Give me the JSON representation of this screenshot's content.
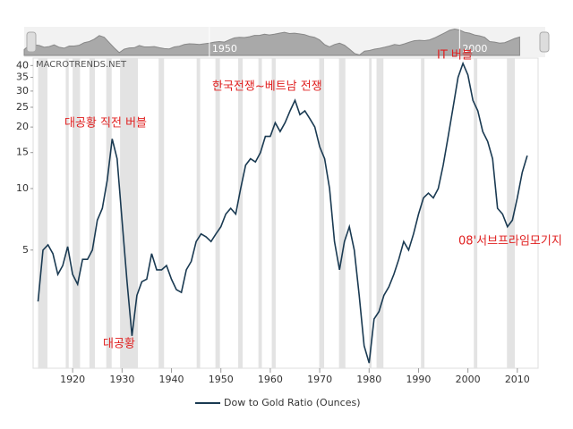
{
  "chart_data": {
    "type": "line",
    "watermark": "MACROTRENDS.NET",
    "x": [
      1913,
      1914,
      1915,
      1916,
      1917,
      1918,
      1919,
      1920,
      1921,
      1922,
      1923,
      1924,
      1925,
      1926,
      1927,
      1928,
      1929,
      1930,
      1931,
      1932,
      1933,
      1934,
      1935,
      1936,
      1937,
      1938,
      1939,
      1940,
      1941,
      1942,
      1943,
      1944,
      1945,
      1946,
      1947,
      1948,
      1949,
      1950,
      1951,
      1952,
      1953,
      1954,
      1955,
      1956,
      1957,
      1958,
      1959,
      1960,
      1961,
      1962,
      1963,
      1964,
      1965,
      1966,
      1967,
      1968,
      1969,
      1970,
      1971,
      1972,
      1973,
      1974,
      1975,
      1976,
      1977,
      1978,
      1979,
      1980,
      1981,
      1982,
      1983,
      1984,
      1985,
      1986,
      1987,
      1988,
      1989,
      1990,
      1991,
      1992,
      1993,
      1994,
      1995,
      1996,
      1997,
      1998,
      1999,
      2000,
      2001,
      2002,
      2003,
      2004,
      2005,
      2006,
      2007,
      2008,
      2009,
      2010,
      2011,
      2012
    ],
    "series": [
      {
        "name": "Dow to Gold Ratio (Ounces)",
        "color": "#1a3a52",
        "values": [
          2.8,
          5.0,
          5.3,
          4.8,
          3.8,
          4.2,
          5.2,
          3.8,
          3.4,
          4.5,
          4.5,
          5.0,
          7.0,
          8.0,
          11,
          17.5,
          14,
          7,
          3.5,
          1.9,
          3.0,
          3.5,
          3.6,
          4.8,
          4.0,
          4.0,
          4.2,
          3.6,
          3.2,
          3.1,
          4.0,
          4.4,
          5.5,
          6.0,
          5.8,
          5.5,
          6.0,
          6.5,
          7.5,
          8.0,
          7.5,
          10,
          13,
          14,
          13.5,
          15,
          18,
          18,
          21,
          19,
          21,
          24,
          27,
          23,
          24,
          22,
          20,
          16,
          14,
          10,
          5.5,
          4,
          5.5,
          6.5,
          5,
          3,
          1.7,
          1.4,
          2.3,
          2.5,
          3.0,
          3.3,
          3.8,
          4.5,
          5.5,
          5,
          6,
          7.5,
          9,
          9.5,
          9,
          10,
          13,
          18,
          25,
          35,
          41,
          36,
          27,
          24,
          19,
          17,
          14,
          8,
          7.5,
          6.5,
          7.0,
          9,
          12,
          14.5
        ]
      }
    ],
    "recessions": [
      [
        1913.0,
        1914.9
      ],
      [
        1918.6,
        1919.2
      ],
      [
        1920.0,
        1921.5
      ],
      [
        1923.4,
        1924.5
      ],
      [
        1926.8,
        1927.9
      ],
      [
        1929.6,
        1933.2
      ],
      [
        1937.4,
        1938.5
      ],
      [
        1945.1,
        1945.8
      ],
      [
        1948.9,
        1949.8
      ],
      [
        1953.5,
        1954.4
      ],
      [
        1957.6,
        1958.3
      ],
      [
        1960.3,
        1961.1
      ],
      [
        1969.9,
        1970.9
      ],
      [
        1973.9,
        1975.2
      ],
      [
        1980.0,
        1980.5
      ],
      [
        1981.5,
        1982.9
      ],
      [
        1990.5,
        1991.2
      ],
      [
        2001.2,
        2001.9
      ],
      [
        2007.9,
        2009.5
      ]
    ],
    "xlim": [
      1912,
      2014.2
    ],
    "xticks": [
      1920,
      1930,
      1940,
      1950,
      1960,
      1970,
      1980,
      1990,
      2000,
      2010
    ],
    "ylim": [
      1.32,
      43.5
    ],
    "yticks": [
      5,
      10,
      15,
      20,
      25,
      30,
      35,
      40
    ],
    "log_y": true,
    "navigator_xlim": [
      1913,
      2015.5
    ],
    "navigator_xticks": [
      1950,
      2000
    ],
    "annotations": [
      "대공황 직전 버블",
      "대공황",
      "한국전쟁~베트남 전쟁",
      "IT 버블",
      "08'서브프라임모기지"
    ]
  }
}
